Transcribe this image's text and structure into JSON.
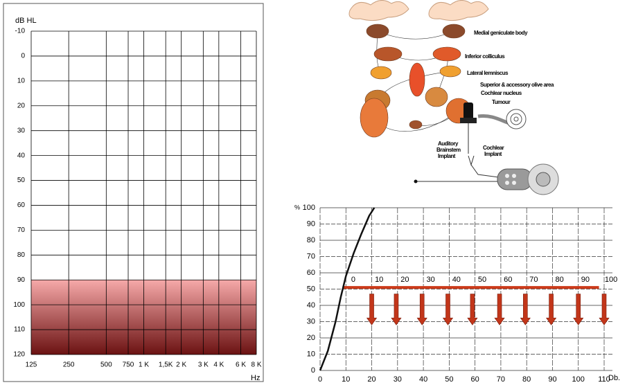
{
  "chart_data": [
    {
      "type": "audiogram",
      "y_label": "dB HL",
      "x_label": "Hz",
      "log_x": true,
      "xlim": [
        125,
        8000
      ],
      "xticks": [
        125,
        250,
        500,
        750,
        {
          "value": 1000,
          "label": "1 K"
        },
        {
          "value": 1500,
          "label": "1,5K"
        },
        {
          "value": 2000,
          "label": "2 K"
        },
        {
          "value": 3000,
          "label": "3 K"
        },
        {
          "value": 4000,
          "label": "4 K"
        },
        {
          "value": 6000,
          "label": "6 K"
        },
        {
          "value": 8000,
          "label": "8 K"
        }
      ],
      "ylim": [
        -10,
        120
      ],
      "y_inverted": true,
      "yticks": [
        -10,
        0,
        10,
        20,
        30,
        40,
        50,
        60,
        70,
        80,
        90,
        100,
        110,
        120
      ],
      "grid": true,
      "band": {
        "from": 90,
        "to": 120,
        "color": [
          "#f6a9a9",
          "#6b1212"
        ]
      }
    },
    {
      "type": "line",
      "y_label": "%",
      "x_label": "Db.",
      "xlim": [
        0,
        110
      ],
      "xticks": [
        0,
        10,
        20,
        30,
        40,
        50,
        60,
        70,
        80,
        90,
        100,
        110
      ],
      "ylim": [
        0,
        100
      ],
      "yticks": [
        0,
        10,
        20,
        30,
        40,
        50,
        60,
        70,
        80,
        90,
        100
      ],
      "grid": true,
      "x": [
        0,
        3,
        6,
        8,
        10,
        13,
        16,
        19,
        21
      ],
      "values": [
        0,
        12,
        30,
        45,
        58,
        72,
        84,
        95,
        100
      ],
      "color": "#111111",
      "x2lim": [
        -12.9,
        97.3
      ],
      "x2ticks": [
        0,
        10,
        20,
        30,
        40,
        50,
        60,
        70,
        80,
        90,
        100
      ],
      "reference_line": {
        "y": 51,
        "from": 9,
        "to": 108,
        "color": "#cc3a1a"
      },
      "arrows": {
        "x": [
          20,
          29.5,
          39.5,
          49.5,
          59,
          69.5,
          79.5,
          89.5,
          100,
          110
        ],
        "from": 47,
        "to": 28,
        "color": "#c2361a"
      }
    }
  ],
  "diagram": {
    "labels": [
      "Medial geniculate body",
      "Inferior colliculus",
      "Lateral lemniscus",
      "Superior & accessory olive area",
      "Cochlear nucleus",
      "Tumour"
    ],
    "abi": [
      "Auditory",
      "Brainstem",
      "Implant"
    ],
    "ci": [
      "Cochlear",
      "Implant"
    ]
  }
}
